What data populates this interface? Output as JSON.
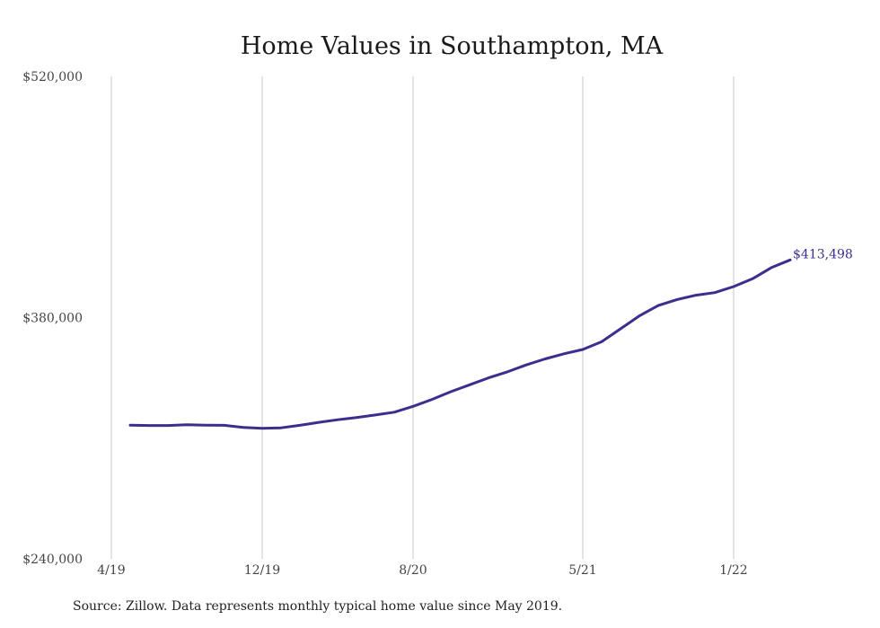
{
  "chart_data": {
    "type": "line",
    "title": "Home Values in Southampton, MA",
    "xlabel": "",
    "ylabel": "",
    "ylim": [
      240000,
      520000
    ],
    "y_ticks": [
      {
        "value": 240000,
        "label": "$240,000"
      },
      {
        "value": 380000,
        "label": "$380,000"
      },
      {
        "value": 520000,
        "label": "$520,000"
      }
    ],
    "x_ticks": [
      {
        "date": "2019-04",
        "label": "4/19"
      },
      {
        "date": "2019-12",
        "label": "12/19"
      },
      {
        "date": "2020-08",
        "label": "8/20"
      },
      {
        "date": "2021-05",
        "label": "5/21"
      },
      {
        "date": "2022-01",
        "label": "1/22"
      }
    ],
    "grid": "vertical",
    "line_color": "#3b2e8f",
    "series": [
      {
        "x": [
          "2019-05",
          "2019-06",
          "2019-07",
          "2019-08",
          "2019-09",
          "2019-10",
          "2019-11",
          "2019-12",
          "2020-01",
          "2020-02",
          "2020-03",
          "2020-04",
          "2020-05",
          "2020-06",
          "2020-07",
          "2020-08",
          "2020-09",
          "2020-10",
          "2020-11",
          "2020-12",
          "2021-01",
          "2021-02",
          "2021-03",
          "2021-04",
          "2021-05",
          "2021-06",
          "2021-07",
          "2021-08",
          "2021-09",
          "2021-10",
          "2021-11",
          "2021-12",
          "2022-01",
          "2022-02",
          "2022-03",
          "2022-04"
        ],
        "values": [
          317600,
          317400,
          317400,
          317800,
          317600,
          317500,
          316300,
          315700,
          316000,
          317500,
          319200,
          320700,
          322000,
          323500,
          325100,
          328500,
          332500,
          337000,
          341000,
          345000,
          348500,
          352500,
          356000,
          359000,
          361500,
          366000,
          373500,
          381000,
          387000,
          390500,
          393000,
          394500,
          398000,
          402500,
          409000,
          413498
        ]
      }
    ],
    "end_label": "$413,498"
  },
  "footer": {
    "source": "Source: Zillow. Data represents monthly typical home value since May 2019."
  }
}
